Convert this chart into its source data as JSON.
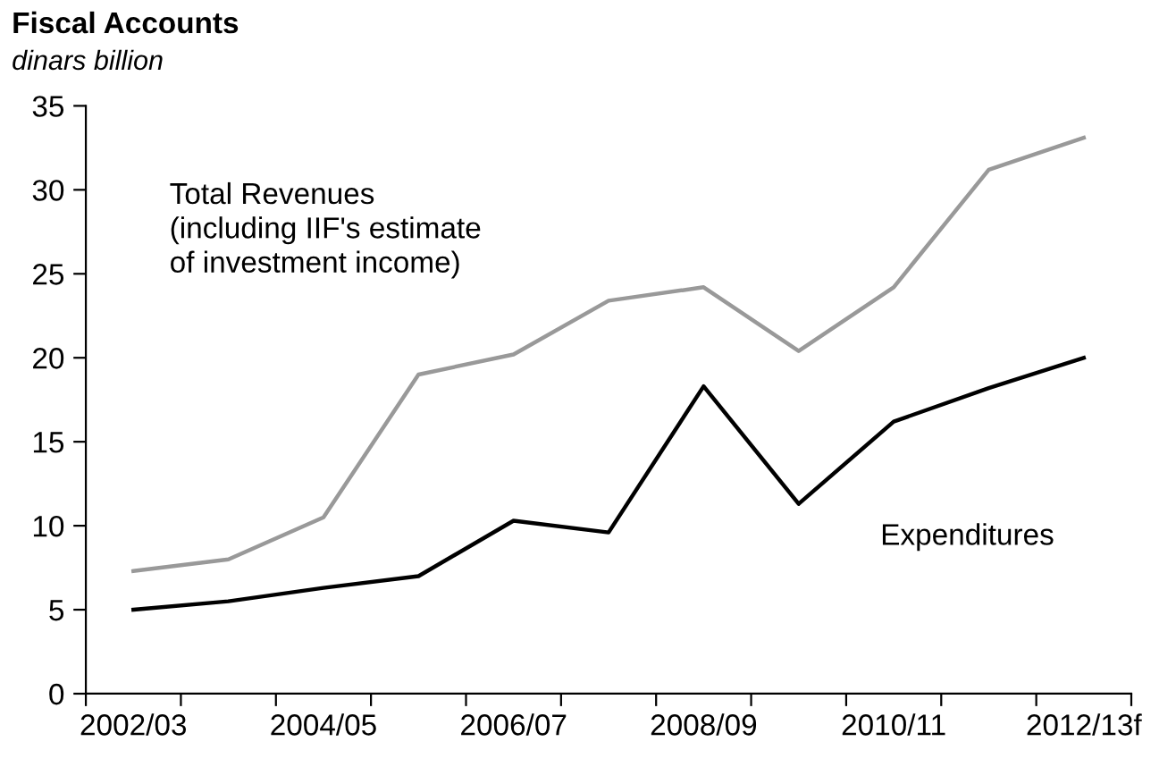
{
  "chart_data": {
    "type": "line",
    "title": "Fiscal Accounts",
    "subtitle": "dinars billion",
    "categories": [
      "2002/03",
      null,
      "2004/05",
      null,
      "2006/07",
      null,
      "2008/09",
      null,
      "2010/11",
      null,
      "2012/13f"
    ],
    "ylim": [
      0,
      35
    ],
    "yticks": [
      0,
      5,
      10,
      15,
      20,
      25,
      30,
      35
    ],
    "grid": false,
    "legend": false,
    "series": [
      {
        "name": "Total Revenues\n(including IIF's estimate\nof investment income)",
        "color": "#999999",
        "values": [
          7.3,
          8.0,
          10.5,
          19.0,
          20.2,
          23.4,
          24.2,
          20.4,
          24.2,
          31.2,
          33.1
        ]
      },
      {
        "name": "Expenditures",
        "color": "#000000",
        "values": [
          5.0,
          5.5,
          6.3,
          7.0,
          10.3,
          9.6,
          18.3,
          11.3,
          16.2,
          18.2,
          20.0
        ]
      }
    ]
  }
}
